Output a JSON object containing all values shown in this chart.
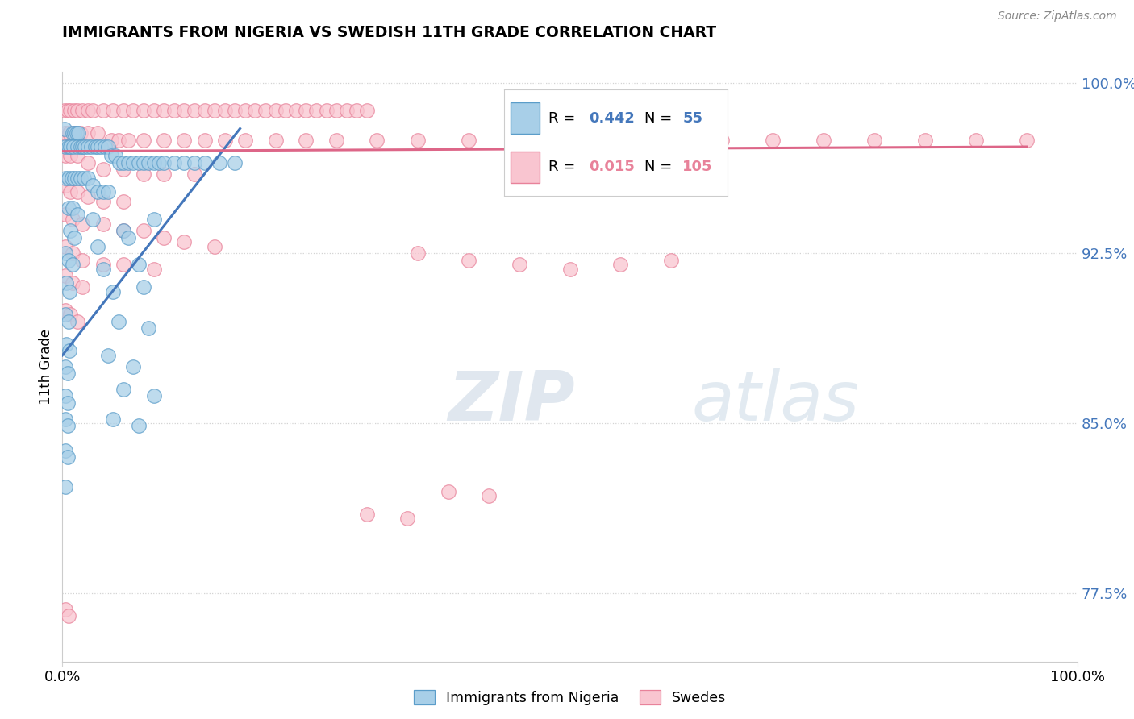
{
  "title": "IMMIGRANTS FROM NIGERIA VS SWEDISH 11TH GRADE CORRELATION CHART",
  "source_text": "Source: ZipAtlas.com",
  "ylabel": "11th Grade",
  "xlim": [
    0.0,
    1.0
  ],
  "ylim": [
    0.745,
    1.005
  ],
  "yticks": [
    0.775,
    0.85,
    0.925,
    1.0
  ],
  "ytick_labels": [
    "77.5%",
    "85.0%",
    "92.5%",
    "100.0%"
  ],
  "xtick_labels": [
    "0.0%",
    "100.0%"
  ],
  "blue_color": "#a8cfe8",
  "pink_color": "#f9c5d0",
  "blue_edge_color": "#5b9dc9",
  "pink_edge_color": "#e8829a",
  "blue_line_color": "#4477bb",
  "pink_line_color": "#dd6688",
  "legend_text_color": "#4477bb",
  "watermark_color": "#d0dde8",
  "watermark_text_color": "#c8d8e8",
  "blue_scatter": [
    [
      0.002,
      0.98
    ],
    [
      0.01,
      0.978
    ],
    [
      0.012,
      0.978
    ],
    [
      0.014,
      0.978
    ],
    [
      0.016,
      0.978
    ],
    [
      0.003,
      0.972
    ],
    [
      0.006,
      0.972
    ],
    [
      0.008,
      0.972
    ],
    [
      0.011,
      0.972
    ],
    [
      0.015,
      0.972
    ],
    [
      0.018,
      0.972
    ],
    [
      0.02,
      0.972
    ],
    [
      0.022,
      0.972
    ],
    [
      0.025,
      0.972
    ],
    [
      0.028,
      0.972
    ],
    [
      0.032,
      0.972
    ],
    [
      0.035,
      0.972
    ],
    [
      0.038,
      0.972
    ],
    [
      0.042,
      0.972
    ],
    [
      0.045,
      0.972
    ],
    [
      0.048,
      0.968
    ],
    [
      0.052,
      0.968
    ],
    [
      0.056,
      0.965
    ],
    [
      0.06,
      0.965
    ],
    [
      0.065,
      0.965
    ],
    [
      0.07,
      0.965
    ],
    [
      0.075,
      0.965
    ],
    [
      0.08,
      0.965
    ],
    [
      0.085,
      0.965
    ],
    [
      0.09,
      0.965
    ],
    [
      0.095,
      0.965
    ],
    [
      0.1,
      0.965
    ],
    [
      0.11,
      0.965
    ],
    [
      0.12,
      0.965
    ],
    [
      0.13,
      0.965
    ],
    [
      0.14,
      0.965
    ],
    [
      0.155,
      0.965
    ],
    [
      0.17,
      0.965
    ],
    [
      0.003,
      0.958
    ],
    [
      0.006,
      0.958
    ],
    [
      0.009,
      0.958
    ],
    [
      0.012,
      0.958
    ],
    [
      0.015,
      0.958
    ],
    [
      0.018,
      0.958
    ],
    [
      0.021,
      0.958
    ],
    [
      0.025,
      0.958
    ],
    [
      0.03,
      0.955
    ],
    [
      0.035,
      0.952
    ],
    [
      0.04,
      0.952
    ],
    [
      0.045,
      0.952
    ],
    [
      0.006,
      0.945
    ],
    [
      0.01,
      0.945
    ],
    [
      0.015,
      0.942
    ],
    [
      0.008,
      0.935
    ],
    [
      0.012,
      0.932
    ],
    [
      0.003,
      0.925
    ],
    [
      0.006,
      0.922
    ],
    [
      0.01,
      0.92
    ],
    [
      0.004,
      0.912
    ],
    [
      0.007,
      0.908
    ],
    [
      0.003,
      0.898
    ],
    [
      0.006,
      0.895
    ],
    [
      0.004,
      0.885
    ],
    [
      0.007,
      0.882
    ],
    [
      0.003,
      0.875
    ],
    [
      0.005,
      0.872
    ],
    [
      0.003,
      0.862
    ],
    [
      0.005,
      0.859
    ],
    [
      0.003,
      0.852
    ],
    [
      0.005,
      0.849
    ],
    [
      0.003,
      0.838
    ],
    [
      0.005,
      0.835
    ],
    [
      0.003,
      0.822
    ],
    [
      0.03,
      0.94
    ],
    [
      0.06,
      0.935
    ],
    [
      0.09,
      0.94
    ],
    [
      0.035,
      0.928
    ],
    [
      0.065,
      0.932
    ],
    [
      0.04,
      0.918
    ],
    [
      0.075,
      0.92
    ],
    [
      0.05,
      0.908
    ],
    [
      0.08,
      0.91
    ],
    [
      0.055,
      0.895
    ],
    [
      0.085,
      0.892
    ],
    [
      0.045,
      0.88
    ],
    [
      0.07,
      0.875
    ],
    [
      0.06,
      0.865
    ],
    [
      0.09,
      0.862
    ],
    [
      0.05,
      0.852
    ],
    [
      0.075,
      0.849
    ]
  ],
  "pink_scatter": [
    [
      0.002,
      0.988
    ],
    [
      0.005,
      0.988
    ],
    [
      0.008,
      0.988
    ],
    [
      0.012,
      0.988
    ],
    [
      0.015,
      0.988
    ],
    [
      0.02,
      0.988
    ],
    [
      0.025,
      0.988
    ],
    [
      0.03,
      0.988
    ],
    [
      0.04,
      0.988
    ],
    [
      0.05,
      0.988
    ],
    [
      0.06,
      0.988
    ],
    [
      0.07,
      0.988
    ],
    [
      0.08,
      0.988
    ],
    [
      0.09,
      0.988
    ],
    [
      0.1,
      0.988
    ],
    [
      0.11,
      0.988
    ],
    [
      0.12,
      0.988
    ],
    [
      0.13,
      0.988
    ],
    [
      0.14,
      0.988
    ],
    [
      0.15,
      0.988
    ],
    [
      0.16,
      0.988
    ],
    [
      0.17,
      0.988
    ],
    [
      0.18,
      0.988
    ],
    [
      0.19,
      0.988
    ],
    [
      0.2,
      0.988
    ],
    [
      0.21,
      0.988
    ],
    [
      0.22,
      0.988
    ],
    [
      0.23,
      0.988
    ],
    [
      0.24,
      0.988
    ],
    [
      0.25,
      0.988
    ],
    [
      0.26,
      0.988
    ],
    [
      0.27,
      0.988
    ],
    [
      0.28,
      0.988
    ],
    [
      0.29,
      0.988
    ],
    [
      0.3,
      0.988
    ],
    [
      0.003,
      0.978
    ],
    [
      0.007,
      0.978
    ],
    [
      0.012,
      0.978
    ],
    [
      0.018,
      0.978
    ],
    [
      0.025,
      0.978
    ],
    [
      0.035,
      0.978
    ],
    [
      0.048,
      0.975
    ],
    [
      0.055,
      0.975
    ],
    [
      0.065,
      0.975
    ],
    [
      0.08,
      0.975
    ],
    [
      0.1,
      0.975
    ],
    [
      0.12,
      0.975
    ],
    [
      0.14,
      0.975
    ],
    [
      0.16,
      0.975
    ],
    [
      0.18,
      0.975
    ],
    [
      0.21,
      0.975
    ],
    [
      0.24,
      0.975
    ],
    [
      0.27,
      0.975
    ],
    [
      0.31,
      0.975
    ],
    [
      0.35,
      0.975
    ],
    [
      0.4,
      0.975
    ],
    [
      0.45,
      0.975
    ],
    [
      0.5,
      0.975
    ],
    [
      0.55,
      0.975
    ],
    [
      0.6,
      0.975
    ],
    [
      0.65,
      0.975
    ],
    [
      0.7,
      0.975
    ],
    [
      0.75,
      0.975
    ],
    [
      0.8,
      0.975
    ],
    [
      0.85,
      0.975
    ],
    [
      0.9,
      0.975
    ],
    [
      0.95,
      0.975
    ],
    [
      0.003,
      0.968
    ],
    [
      0.008,
      0.968
    ],
    [
      0.015,
      0.968
    ],
    [
      0.025,
      0.965
    ],
    [
      0.04,
      0.962
    ],
    [
      0.06,
      0.962
    ],
    [
      0.08,
      0.96
    ],
    [
      0.1,
      0.96
    ],
    [
      0.13,
      0.96
    ],
    [
      0.003,
      0.955
    ],
    [
      0.008,
      0.952
    ],
    [
      0.015,
      0.952
    ],
    [
      0.025,
      0.95
    ],
    [
      0.04,
      0.948
    ],
    [
      0.06,
      0.948
    ],
    [
      0.003,
      0.942
    ],
    [
      0.01,
      0.94
    ],
    [
      0.02,
      0.938
    ],
    [
      0.04,
      0.938
    ],
    [
      0.06,
      0.935
    ],
    [
      0.08,
      0.935
    ],
    [
      0.1,
      0.932
    ],
    [
      0.12,
      0.93
    ],
    [
      0.15,
      0.928
    ],
    [
      0.003,
      0.928
    ],
    [
      0.01,
      0.925
    ],
    [
      0.02,
      0.922
    ],
    [
      0.04,
      0.92
    ],
    [
      0.06,
      0.92
    ],
    [
      0.09,
      0.918
    ],
    [
      0.003,
      0.915
    ],
    [
      0.01,
      0.912
    ],
    [
      0.02,
      0.91
    ],
    [
      0.35,
      0.925
    ],
    [
      0.4,
      0.922
    ],
    [
      0.45,
      0.92
    ],
    [
      0.5,
      0.918
    ],
    [
      0.55,
      0.92
    ],
    [
      0.6,
      0.922
    ],
    [
      0.003,
      0.9
    ],
    [
      0.008,
      0.898
    ],
    [
      0.015,
      0.895
    ],
    [
      0.38,
      0.82
    ],
    [
      0.42,
      0.818
    ],
    [
      0.3,
      0.81
    ],
    [
      0.34,
      0.808
    ],
    [
      0.003,
      0.768
    ],
    [
      0.006,
      0.765
    ]
  ],
  "blue_line_pts": [
    [
      0.0,
      0.88
    ],
    [
      0.175,
      0.98
    ]
  ],
  "pink_line_pts": [
    [
      0.0,
      0.97
    ],
    [
      0.95,
      0.972
    ]
  ]
}
